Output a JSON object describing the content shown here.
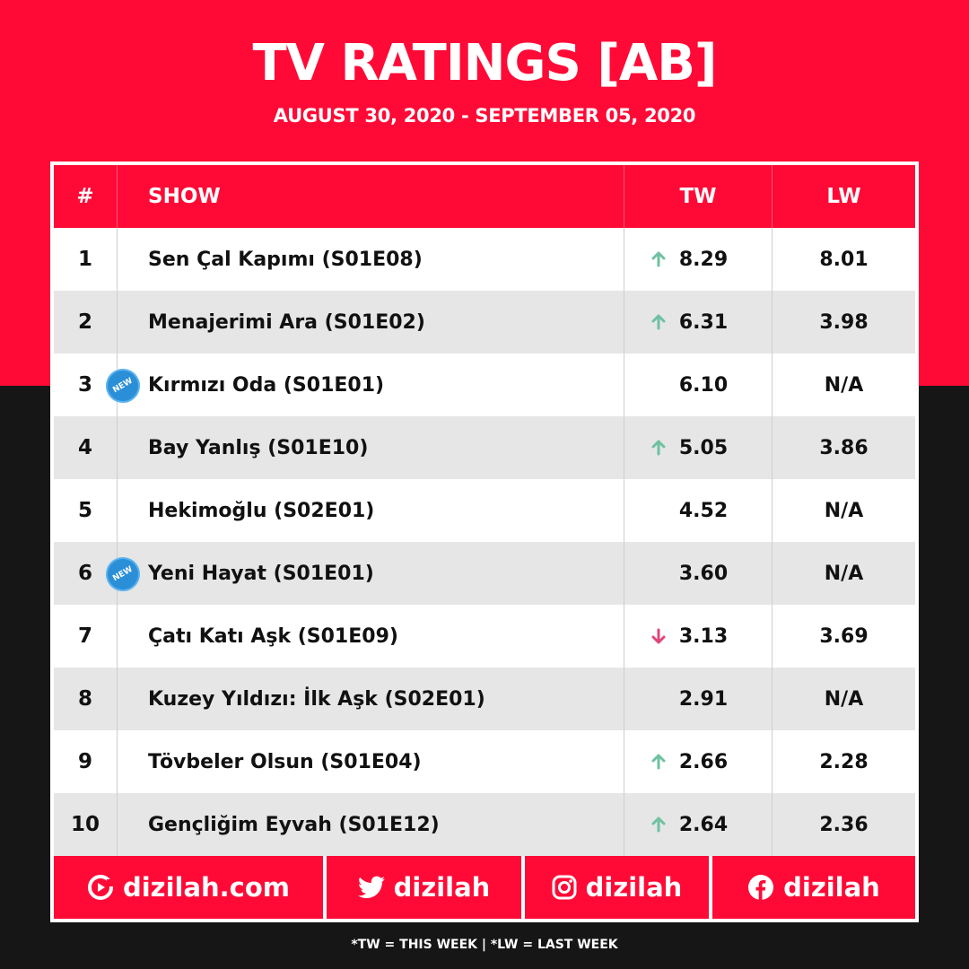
{
  "header": {
    "title": "TV RATINGS [AB]",
    "date_range": "AUGUST 30, 2020 - SEPTEMBER 05, 2020"
  },
  "table": {
    "columns": {
      "rank": "#",
      "show": "SHOW",
      "tw": "TW",
      "lw": "LW"
    },
    "badge_label": "NEW",
    "rows": [
      {
        "rank": "1",
        "show": "Sen Çal Kapımı (S01E08)",
        "tw": "8.29",
        "lw": "8.01",
        "trend": "up",
        "new": false
      },
      {
        "rank": "2",
        "show": "Menajerimi Ara (S01E02)",
        "tw": "6.31",
        "lw": "3.98",
        "trend": "up",
        "new": false
      },
      {
        "rank": "3",
        "show": "Kırmızı Oda (S01E01)",
        "tw": "6.10",
        "lw": "N/A",
        "trend": "none",
        "new": true
      },
      {
        "rank": "4",
        "show": "Bay Yanlış (S01E10)",
        "tw": "5.05",
        "lw": "3.86",
        "trend": "up",
        "new": false
      },
      {
        "rank": "5",
        "show": "Hekimoğlu (S02E01)",
        "tw": "4.52",
        "lw": "N/A",
        "trend": "none",
        "new": false
      },
      {
        "rank": "6",
        "show": "Yeni Hayat (S01E01)",
        "tw": "3.60",
        "lw": "N/A",
        "trend": "none",
        "new": true
      },
      {
        "rank": "7",
        "show": "Çatı Katı Aşk (S01E09)",
        "tw": "3.13",
        "lw": "3.69",
        "trend": "down",
        "new": false
      },
      {
        "rank": "8",
        "show": "Kuzey Yıldızı: İlk Aşk (S02E01)",
        "tw": "2.91",
        "lw": "N/A",
        "trend": "none",
        "new": false
      },
      {
        "rank": "9",
        "show": "Tövbeler Olsun (S01E04)",
        "tw": "2.66",
        "lw": "2.28",
        "trend": "up",
        "new": false
      },
      {
        "rank": "10",
        "show": "Gençliğim Eyvah (S01E12)",
        "tw": "2.64",
        "lw": "2.36",
        "trend": "up",
        "new": false
      }
    ]
  },
  "footer": {
    "website": "dizilah.com",
    "twitter": "dizilah",
    "instagram": "dizilah",
    "facebook": "dizilah",
    "note": "*TW = THIS WEEK | *LW = LAST WEEK"
  },
  "colors": {
    "brand_red": "#ff0a36",
    "dark_bg": "#161616",
    "up_arrow": "#6fc1a2",
    "down_arrow": "#e0457b",
    "new_badge": "#2b8fd8"
  },
  "icons": {
    "up": "arrow-up-icon",
    "down": "arrow-down-icon",
    "new": "new-badge-icon",
    "website": "dizilah-logo-icon",
    "twitter": "twitter-icon",
    "instagram": "instagram-icon",
    "facebook": "facebook-icon"
  }
}
